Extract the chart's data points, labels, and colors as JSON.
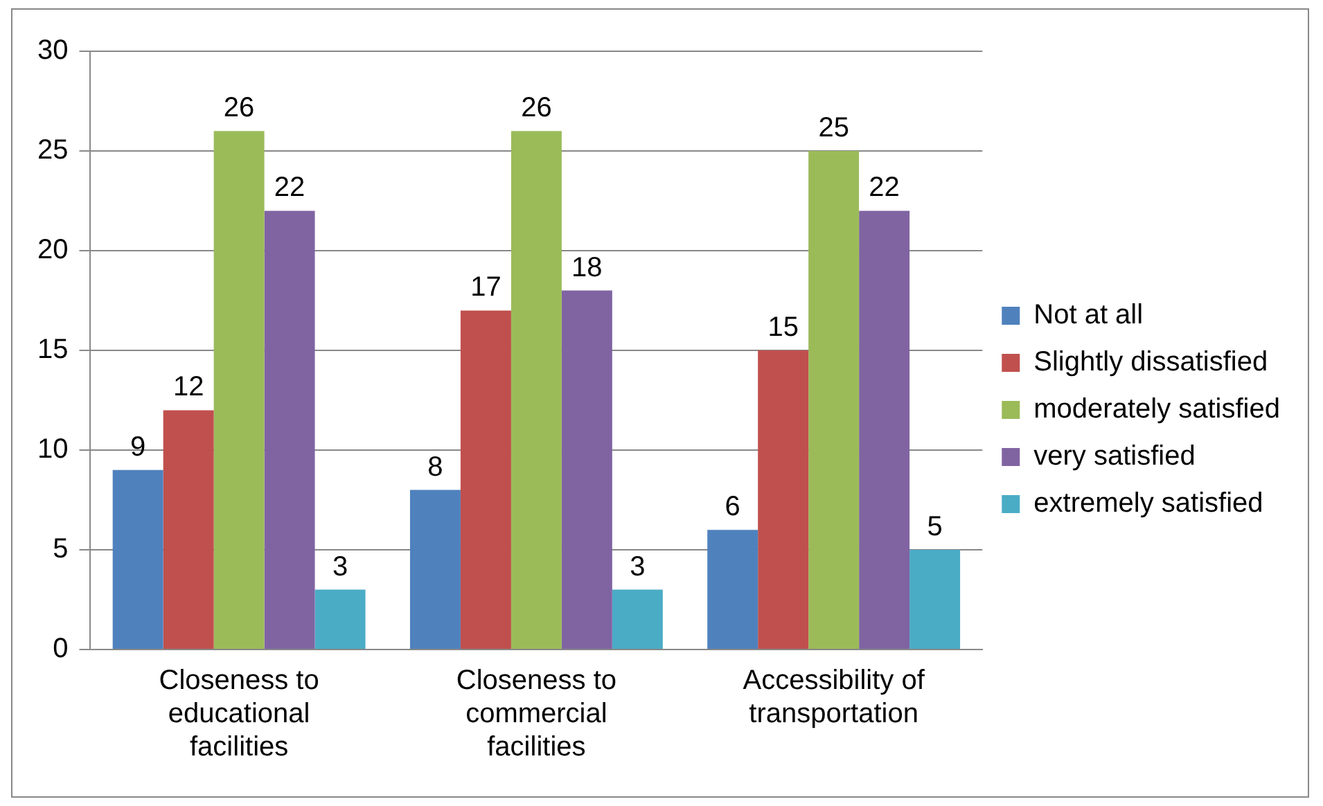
{
  "chart_data": {
    "type": "bar",
    "categories": [
      "Closeness to educational facilities",
      "Closeness to commercial facilities",
      "Accessibility of transportation"
    ],
    "series": [
      {
        "name": "Not at all",
        "color": "#4f81bd",
        "values": [
          9,
          8,
          6
        ]
      },
      {
        "name": "Slightly dissatisfied",
        "color": "#c0504d",
        "values": [
          12,
          17,
          15
        ]
      },
      {
        "name": "moderately satisfied",
        "color": "#9bbb59",
        "values": [
          26,
          26,
          25
        ]
      },
      {
        "name": "very satisfied",
        "color": "#8064a2",
        "values": [
          22,
          18,
          22
        ]
      },
      {
        "name": "extremely satisfied",
        "color": "#4bacc6",
        "values": [
          3,
          3,
          5
        ]
      }
    ],
    "ylim": [
      0,
      30
    ],
    "yticks": [
      0,
      5,
      10,
      15,
      20,
      25,
      30
    ],
    "grid": "y",
    "legend": "right",
    "data_labels": true
  }
}
